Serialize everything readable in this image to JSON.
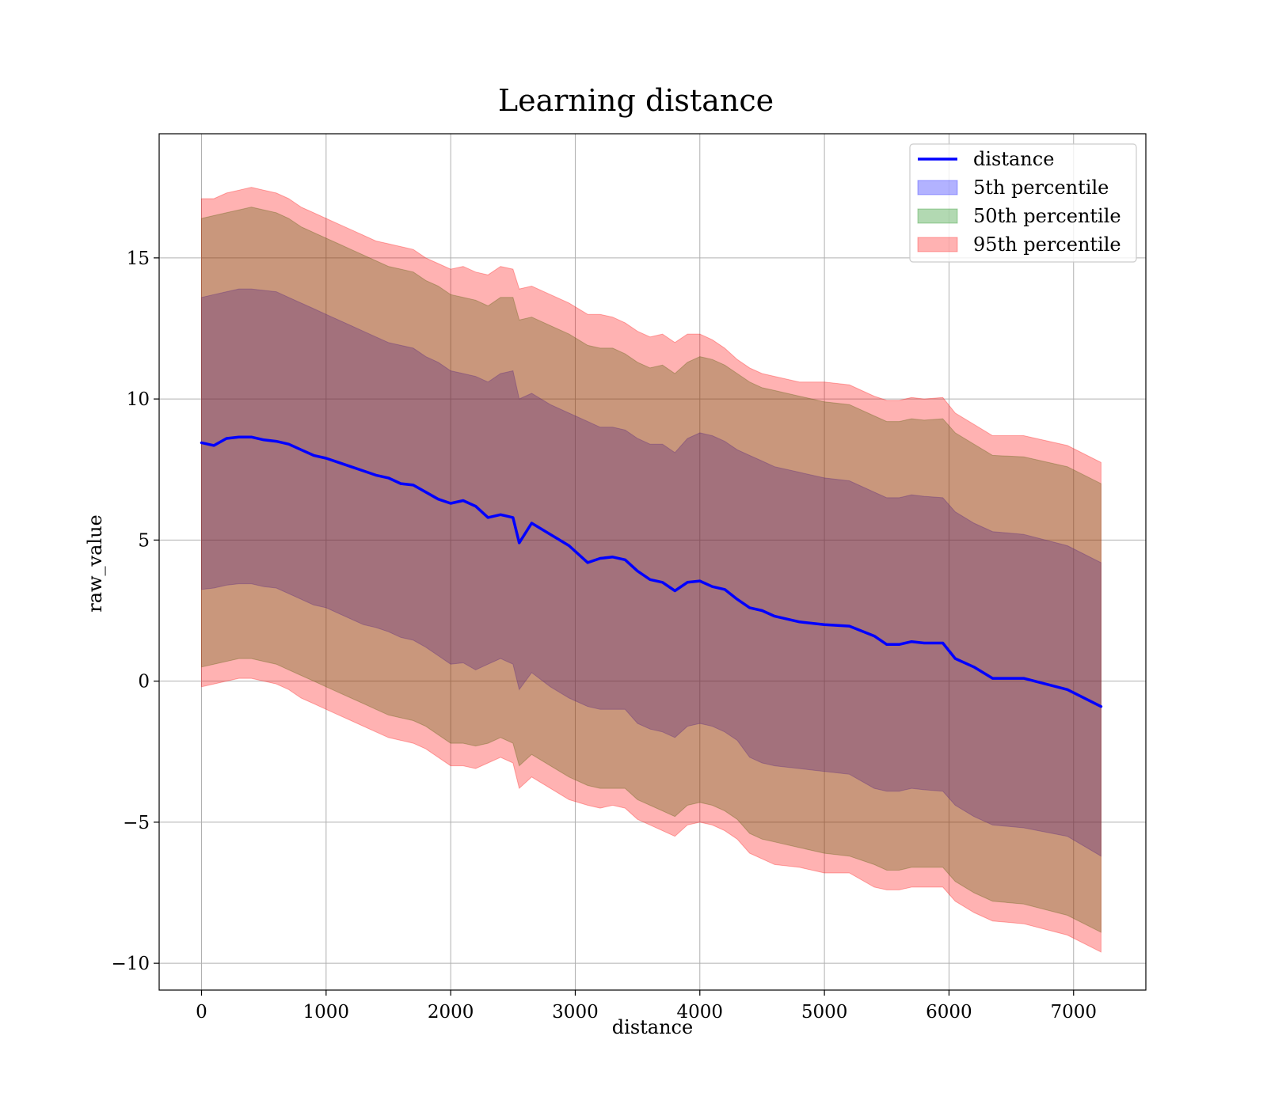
{
  "chart_data": {
    "type": "area",
    "title": "Learning distance",
    "xlabel": "distance",
    "ylabel": "raw_value",
    "xlim": [
      -340,
      7580
    ],
    "ylim": [
      -10.95,
      19.4
    ],
    "xticks": [
      0,
      1000,
      2000,
      3000,
      4000,
      5000,
      6000,
      7000
    ],
    "xtick_labels": [
      "0",
      "1000",
      "2000",
      "3000",
      "4000",
      "5000",
      "6000",
      "7000"
    ],
    "yticks": [
      -10,
      -5,
      0,
      5,
      10,
      15
    ],
    "ytick_labels": [
      "−10",
      "−5",
      "0",
      "5",
      "10",
      "15"
    ],
    "grid": true,
    "legend_position": "upper right",
    "x": [
      0,
      100,
      200,
      300,
      400,
      500,
      600,
      700,
      800,
      900,
      1000,
      1100,
      1200,
      1300,
      1400,
      1500,
      1600,
      1700,
      1800,
      1900,
      2000,
      2100,
      2200,
      2300,
      2400,
      2500,
      2550,
      2650,
      2800,
      2950,
      3100,
      3200,
      3300,
      3400,
      3500,
      3600,
      3700,
      3800,
      3900,
      4000,
      4100,
      4200,
      4300,
      4400,
      4500,
      4600,
      4800,
      5000,
      5200,
      5400,
      5500,
      5600,
      5700,
      5800,
      5950,
      6050,
      6200,
      6350,
      6600,
      6950,
      7220
    ],
    "series": [
      {
        "name": "distance",
        "kind": "line",
        "color": "#0000ff",
        "values": [
          8.45,
          8.35,
          8.6,
          8.65,
          8.65,
          8.55,
          8.5,
          8.4,
          8.2,
          8.0,
          7.9,
          7.75,
          7.6,
          7.45,
          7.3,
          7.2,
          7.0,
          6.95,
          6.7,
          6.45,
          6.3,
          6.4,
          6.2,
          5.8,
          5.9,
          5.8,
          4.9,
          5.6,
          5.2,
          4.8,
          4.2,
          4.35,
          4.4,
          4.3,
          3.9,
          3.6,
          3.5,
          3.2,
          3.5,
          3.55,
          3.35,
          3.25,
          2.9,
          2.6,
          2.5,
          2.3,
          2.1,
          2.0,
          1.95,
          1.6,
          1.3,
          1.3,
          1.4,
          1.35,
          1.35,
          0.8,
          0.5,
          0.1,
          0.1,
          -0.3,
          -0.9
        ]
      },
      {
        "name": "5th percentile",
        "kind": "band",
        "color": "#0000ff",
        "upper": [
          13.6,
          13.7,
          13.8,
          13.9,
          13.9,
          13.85,
          13.8,
          13.6,
          13.4,
          13.2,
          13.0,
          12.8,
          12.6,
          12.4,
          12.2,
          12.0,
          11.9,
          11.8,
          11.5,
          11.3,
          11.0,
          10.9,
          10.8,
          10.6,
          10.9,
          11.0,
          10.0,
          10.2,
          9.8,
          9.5,
          9.2,
          9.0,
          9.0,
          8.9,
          8.6,
          8.4,
          8.4,
          8.1,
          8.6,
          8.8,
          8.7,
          8.5,
          8.2,
          8.0,
          7.8,
          7.6,
          7.4,
          7.2,
          7.1,
          6.7,
          6.5,
          6.5,
          6.6,
          6.55,
          6.5,
          6.0,
          5.6,
          5.3,
          5.2,
          4.8,
          4.2
        ],
        "lower": [
          3.25,
          3.3,
          3.4,
          3.45,
          3.45,
          3.35,
          3.3,
          3.1,
          2.9,
          2.7,
          2.6,
          2.4,
          2.2,
          2.0,
          1.9,
          1.75,
          1.55,
          1.45,
          1.2,
          0.9,
          0.6,
          0.65,
          0.4,
          0.6,
          0.8,
          0.6,
          -0.3,
          0.3,
          -0.2,
          -0.6,
          -0.9,
          -1.0,
          -1.0,
          -1.0,
          -1.5,
          -1.7,
          -1.8,
          -2.0,
          -1.6,
          -1.5,
          -1.6,
          -1.8,
          -2.1,
          -2.7,
          -2.9,
          -3.0,
          -3.1,
          -3.2,
          -3.3,
          -3.8,
          -3.9,
          -3.9,
          -3.8,
          -3.85,
          -3.9,
          -4.4,
          -4.8,
          -5.1,
          -5.2,
          -5.5,
          -6.2
        ]
      },
      {
        "name": "50th percentile",
        "kind": "band",
        "color": "#008000",
        "upper": [
          16.4,
          16.5,
          16.6,
          16.7,
          16.8,
          16.7,
          16.6,
          16.4,
          16.1,
          15.9,
          15.7,
          15.5,
          15.3,
          15.1,
          14.9,
          14.7,
          14.6,
          14.5,
          14.2,
          14.0,
          13.7,
          13.6,
          13.5,
          13.3,
          13.6,
          13.6,
          12.8,
          12.9,
          12.6,
          12.3,
          11.9,
          11.8,
          11.8,
          11.6,
          11.3,
          11.1,
          11.2,
          10.9,
          11.3,
          11.5,
          11.4,
          11.2,
          10.9,
          10.6,
          10.4,
          10.3,
          10.1,
          9.9,
          9.8,
          9.4,
          9.2,
          9.2,
          9.3,
          9.25,
          9.3,
          8.8,
          8.4,
          8.0,
          7.95,
          7.6,
          7.0
        ],
        "lower": [
          0.5,
          0.6,
          0.7,
          0.8,
          0.8,
          0.7,
          0.6,
          0.4,
          0.2,
          0.0,
          -0.2,
          -0.4,
          -0.6,
          -0.8,
          -1.0,
          -1.2,
          -1.3,
          -1.4,
          -1.6,
          -1.9,
          -2.2,
          -2.2,
          -2.3,
          -2.2,
          -2.0,
          -2.2,
          -3.0,
          -2.6,
          -3.0,
          -3.4,
          -3.7,
          -3.8,
          -3.8,
          -3.8,
          -4.2,
          -4.4,
          -4.6,
          -4.8,
          -4.4,
          -4.3,
          -4.4,
          -4.6,
          -4.9,
          -5.4,
          -5.6,
          -5.7,
          -5.9,
          -6.1,
          -6.2,
          -6.5,
          -6.7,
          -6.7,
          -6.6,
          -6.6,
          -6.6,
          -7.1,
          -7.5,
          -7.8,
          -7.9,
          -8.3,
          -8.9
        ]
      },
      {
        "name": "95th percentile",
        "kind": "band",
        "color": "#ff0000",
        "upper": [
          17.1,
          17.1,
          17.3,
          17.4,
          17.5,
          17.4,
          17.3,
          17.1,
          16.8,
          16.6,
          16.4,
          16.2,
          16.0,
          15.8,
          15.6,
          15.5,
          15.4,
          15.3,
          15.0,
          14.8,
          14.6,
          14.7,
          14.5,
          14.4,
          14.7,
          14.6,
          13.9,
          14.0,
          13.7,
          13.4,
          13.0,
          13.0,
          12.9,
          12.7,
          12.4,
          12.2,
          12.3,
          12.0,
          12.3,
          12.3,
          12.1,
          11.8,
          11.4,
          11.1,
          10.9,
          10.8,
          10.6,
          10.6,
          10.5,
          10.1,
          9.95,
          9.95,
          10.05,
          10.0,
          10.05,
          9.5,
          9.1,
          8.7,
          8.7,
          8.35,
          7.75
        ],
        "lower": [
          -0.2,
          -0.1,
          0.0,
          0.1,
          0.1,
          0.0,
          -0.1,
          -0.3,
          -0.6,
          -0.8,
          -1.0,
          -1.2,
          -1.4,
          -1.6,
          -1.8,
          -2.0,
          -2.1,
          -2.2,
          -2.4,
          -2.7,
          -3.0,
          -3.0,
          -3.1,
          -2.9,
          -2.7,
          -2.9,
          -3.8,
          -3.4,
          -3.8,
          -4.2,
          -4.4,
          -4.5,
          -4.4,
          -4.5,
          -4.9,
          -5.1,
          -5.3,
          -5.5,
          -5.1,
          -5.0,
          -5.1,
          -5.3,
          -5.6,
          -6.1,
          -6.3,
          -6.5,
          -6.6,
          -6.8,
          -6.8,
          -7.3,
          -7.4,
          -7.4,
          -7.3,
          -7.3,
          -7.3,
          -7.8,
          -8.2,
          -8.5,
          -8.6,
          -9.0,
          -9.6
        ]
      }
    ]
  }
}
